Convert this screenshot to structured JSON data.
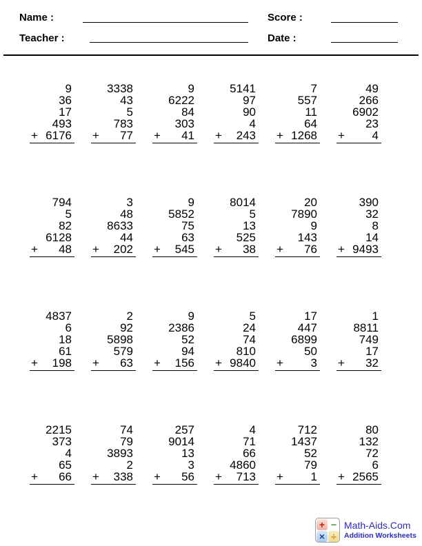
{
  "header": {
    "name_label": "Name :",
    "teacher_label": "Teacher :",
    "score_label": "Score :",
    "date_label": "Date :",
    "name_value": "",
    "teacher_value": "",
    "score_value": "",
    "date_value": ""
  },
  "problems": [
    {
      "operator": "+",
      "addends": [
        "9",
        "36",
        "17",
        "493"
      ],
      "last_addend": "6176"
    },
    {
      "operator": "+",
      "addends": [
        "3338",
        "43",
        "5",
        "783"
      ],
      "last_addend": "77"
    },
    {
      "operator": "+",
      "addends": [
        "9",
        "6222",
        "84",
        "303"
      ],
      "last_addend": "41"
    },
    {
      "operator": "+",
      "addends": [
        "5141",
        "97",
        "90",
        "4"
      ],
      "last_addend": "243"
    },
    {
      "operator": "+",
      "addends": [
        "7",
        "557",
        "11",
        "64"
      ],
      "last_addend": "1268"
    },
    {
      "operator": "+",
      "addends": [
        "49",
        "266",
        "6902",
        "23"
      ],
      "last_addend": "4"
    },
    {
      "operator": "+",
      "addends": [
        "794",
        "5",
        "82",
        "6128"
      ],
      "last_addend": "48"
    },
    {
      "operator": "+",
      "addends": [
        "3",
        "48",
        "8633",
        "44"
      ],
      "last_addend": "202"
    },
    {
      "operator": "+",
      "addends": [
        "9",
        "5852",
        "75",
        "63"
      ],
      "last_addend": "545"
    },
    {
      "operator": "+",
      "addends": [
        "8014",
        "5",
        "13",
        "525"
      ],
      "last_addend": "38"
    },
    {
      "operator": "+",
      "addends": [
        "20",
        "7890",
        "9",
        "143"
      ],
      "last_addend": "76"
    },
    {
      "operator": "+",
      "addends": [
        "390",
        "32",
        "8",
        "14"
      ],
      "last_addend": "9493"
    },
    {
      "operator": "+",
      "addends": [
        "4837",
        "6",
        "18",
        "61"
      ],
      "last_addend": "198"
    },
    {
      "operator": "+",
      "addends": [
        "2",
        "92",
        "5898",
        "579"
      ],
      "last_addend": "63"
    },
    {
      "operator": "+",
      "addends": [
        "9",
        "2386",
        "52",
        "94"
      ],
      "last_addend": "156"
    },
    {
      "operator": "+",
      "addends": [
        "5",
        "24",
        "74",
        "810"
      ],
      "last_addend": "9840"
    },
    {
      "operator": "+",
      "addends": [
        "17",
        "447",
        "6899",
        "50"
      ],
      "last_addend": "3"
    },
    {
      "operator": "+",
      "addends": [
        "1",
        "8811",
        "749",
        "17"
      ],
      "last_addend": "32"
    },
    {
      "operator": "+",
      "addends": [
        "2215",
        "373",
        "4",
        "65"
      ],
      "last_addend": "66"
    },
    {
      "operator": "+",
      "addends": [
        "74",
        "79",
        "3893",
        "2"
      ],
      "last_addend": "338"
    },
    {
      "operator": "+",
      "addends": [
        "257",
        "9014",
        "13",
        "3"
      ],
      "last_addend": "56"
    },
    {
      "operator": "+",
      "addends": [
        "4",
        "71",
        "66",
        "4860"
      ],
      "last_addend": "713"
    },
    {
      "operator": "+",
      "addends": [
        "712",
        "1437",
        "52",
        "79"
      ],
      "last_addend": "1"
    },
    {
      "operator": "+",
      "addends": [
        "80",
        "132",
        "72",
        "6"
      ],
      "last_addend": "2565"
    }
  ],
  "footer": {
    "brand": "Math-Aids.Com",
    "subtitle": "Addition Worksheets",
    "logo_symbols": {
      "plus": "+",
      "minus": "−",
      "times": "×",
      "divide": "÷"
    },
    "brand_color": "#2b2bc0"
  }
}
